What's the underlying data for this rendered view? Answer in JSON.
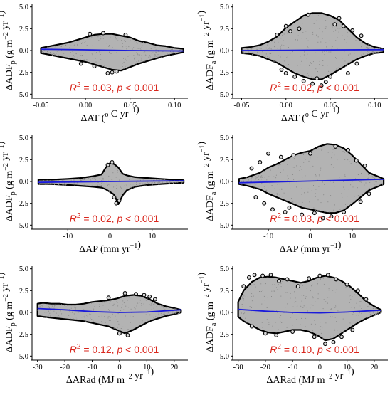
{
  "figure": {
    "colors": {
      "cloud_fill": "#b3b3b3",
      "cloud_outline": "#000000",
      "fit_line": "#1a1adb",
      "annotation": "#d9261c"
    }
  },
  "chart_data": [
    {
      "id": "p1",
      "type": "scatter",
      "xlabel": "ΔAT (o C yr−1)",
      "ylabel": "ΔADFp (g m−2 yr−1)",
      "xlim": [
        -0.06,
        0.115
      ],
      "ylim": [
        -5.3,
        5.3
      ],
      "xticks": [
        -0.05,
        0.0,
        0.05,
        0.1
      ],
      "xtick_labels": [
        "-0.05",
        "0.00",
        "0.05",
        "0.10"
      ],
      "yticks": [
        -5.0,
        -2.5,
        0.0,
        2.5,
        5.0
      ],
      "ytick_labels": [
        "-5.0",
        "-2.5",
        "0.0",
        "2.5",
        "5.0"
      ],
      "annotation": "R2 = 0.03, p < 0.001",
      "envelope": {
        "x": [
          -0.05,
          -0.04,
          -0.03,
          -0.02,
          -0.01,
          0.0,
          0.01,
          0.02,
          0.03,
          0.04,
          0.05,
          0.06,
          0.07,
          0.08,
          0.09,
          0.1,
          0.11
        ],
        "upper": [
          0.3,
          0.5,
          0.7,
          0.9,
          1.2,
          1.5,
          1.8,
          1.9,
          1.9,
          1.7,
          1.5,
          1.1,
          0.9,
          0.6,
          0.5,
          0.3,
          0.2
        ],
        "lower": [
          -0.3,
          -0.5,
          -0.7,
          -0.9,
          -1.1,
          -1.3,
          -1.6,
          -1.9,
          -2.2,
          -2.3,
          -1.9,
          -1.5,
          -1.2,
          -0.9,
          -0.6,
          -0.4,
          -0.2
        ]
      },
      "points": [
        [
          0.02,
          2.0
        ],
        [
          0.025,
          -2.6
        ],
        [
          0.03,
          -2.5
        ],
        [
          0.035,
          -2.4
        ],
        [
          0.005,
          1.9
        ],
        [
          -0.005,
          -1.5
        ],
        [
          0.045,
          1.8
        ],
        [
          0.01,
          -1.8
        ]
      ],
      "fit": {
        "x": [
          -0.05,
          0.0,
          0.05,
          0.11
        ],
        "y": [
          0.15,
          0.08,
          0.0,
          -0.05
        ]
      }
    },
    {
      "id": "p2",
      "type": "scatter",
      "xlabel": "ΔAT (o C yr−1)",
      "ylabel": "ΔADFa (g m−2 yr−1)",
      "xlim": [
        -0.06,
        0.115
      ],
      "ylim": [
        -5.3,
        5.3
      ],
      "xticks": [
        -0.05,
        0.0,
        0.05,
        0.1
      ],
      "xtick_labels": [
        "-0.05",
        "0.00",
        "0.05",
        "0.10"
      ],
      "yticks": [
        -5.0,
        -2.5,
        0.0,
        2.5,
        5.0
      ],
      "ytick_labels": [
        "-5.0",
        "-2.5",
        "0.0",
        "2.5",
        "5.0"
      ],
      "annotation": "R2 = 0.02, p < 0.001",
      "envelope": {
        "x": [
          -0.05,
          -0.04,
          -0.03,
          -0.02,
          -0.01,
          0.0,
          0.01,
          0.02,
          0.03,
          0.04,
          0.05,
          0.06,
          0.07,
          0.08,
          0.09,
          0.1,
          0.11
        ],
        "upper": [
          0.3,
          0.4,
          0.6,
          1.0,
          1.6,
          2.6,
          3.3,
          4.0,
          4.3,
          4.3,
          4.0,
          3.5,
          2.5,
          1.5,
          0.8,
          0.4,
          0.2
        ],
        "lower": [
          -0.3,
          -0.4,
          -0.6,
          -1.0,
          -1.4,
          -2.0,
          -2.6,
          -3.0,
          -3.3,
          -3.3,
          -2.8,
          -2.2,
          -1.6,
          -1.0,
          -0.6,
          -0.3,
          -0.2
        ]
      },
      "points": [
        [
          0.0,
          2.8
        ],
        [
          0.005,
          2.2
        ],
        [
          -0.01,
          1.8
        ],
        [
          0.015,
          2.5
        ],
        [
          0.02,
          -3.5
        ],
        [
          0.03,
          -3.8
        ],
        [
          0.04,
          -4.0
        ],
        [
          0.045,
          -3.6
        ],
        [
          0.05,
          -3.0
        ],
        [
          0.06,
          3.7
        ],
        [
          0.065,
          2.8
        ],
        [
          0.07,
          -2.6
        ],
        [
          0.075,
          2.3
        ],
        [
          0.08,
          -1.5
        ],
        [
          0.085,
          1.7
        ],
        [
          0.01,
          -3.0
        ],
        [
          -0.005,
          -2.2
        ],
        [
          0.055,
          3.0
        ],
        [
          0.025,
          4.1
        ],
        [
          0.035,
          -3.2
        ],
        [
          0.0,
          -2.6
        ]
      ],
      "fit": {
        "x": [
          -0.05,
          0.0,
          0.05,
          0.11
        ],
        "y": [
          0.0,
          0.03,
          0.07,
          0.1
        ]
      }
    },
    {
      "id": "p3",
      "type": "scatter",
      "xlabel": "ΔAP (mm yr−1)",
      "ylabel": "ΔADFp (g m−2 yr−1)",
      "xlim": [
        -18.5,
        18.5
      ],
      "ylim": [
        -5.3,
        5.3
      ],
      "xticks": [
        -10,
        0,
        10
      ],
      "xtick_labels": [
        "-10",
        "0",
        "10"
      ],
      "yticks": [
        -5.0,
        -2.5,
        0.0,
        2.5,
        5.0
      ],
      "ytick_labels": [
        "-5.0",
        "-2.5",
        "0.0",
        "2.5",
        "5.0"
      ],
      "annotation": "R2 = 0.02, p < 0.001",
      "envelope": {
        "x": [
          -17,
          -14,
          -10,
          -7,
          -4,
          -2,
          -1,
          0,
          1,
          2,
          3,
          4,
          6,
          9,
          12,
          15,
          17.5
        ],
        "upper": [
          0.2,
          0.2,
          0.3,
          0.4,
          0.6,
          0.8,
          1.6,
          2.1,
          2.0,
          1.6,
          0.9,
          0.7,
          0.5,
          0.4,
          0.3,
          0.2,
          0.15
        ],
        "lower": [
          -0.3,
          -0.3,
          -0.4,
          -0.5,
          -0.6,
          -0.7,
          -0.9,
          -1.2,
          -1.5,
          -2.6,
          -1.6,
          -1.0,
          -0.6,
          -0.4,
          -0.3,
          -0.2,
          -0.15
        ]
      },
      "points": [
        [
          1.5,
          -2.5
        ],
        [
          0.5,
          2.2
        ],
        [
          -0.5,
          1.9
        ],
        [
          1.0,
          -1.8
        ],
        [
          2.2,
          -2.2
        ]
      ],
      "fit": {
        "x": [
          -17,
          0,
          17.5
        ],
        "y": [
          -0.1,
          0.0,
          0.08
        ]
      }
    },
    {
      "id": "p4",
      "type": "scatter",
      "xlabel": "ΔAP (mm yr−1)",
      "ylabel": "ΔADFa (g m−2 yr−1)",
      "xlim": [
        -18.5,
        18.5
      ],
      "ylim": [
        -5.3,
        5.3
      ],
      "xticks": [
        -10,
        0,
        10
      ],
      "xtick_labels": [
        "-10",
        "0",
        "10"
      ],
      "yticks": [
        -5.0,
        -2.5,
        0.0,
        2.5,
        5.0
      ],
      "ytick_labels": [
        "-5.0",
        "-2.5",
        "0.0",
        "2.5",
        "5.0"
      ],
      "annotation": "R2 = 0.03, p < 0.001",
      "envelope": {
        "x": [
          -17,
          -15,
          -12,
          -10,
          -8,
          -6,
          -4,
          -2,
          0,
          2,
          4,
          6,
          8,
          10,
          12,
          14,
          17.5
        ],
        "upper": [
          0.3,
          0.5,
          1.0,
          1.6,
          2.0,
          2.5,
          3.0,
          3.3,
          3.5,
          4.0,
          4.3,
          4.2,
          3.8,
          3.0,
          2.0,
          1.0,
          0.3
        ],
        "lower": [
          -0.3,
          -0.5,
          -0.9,
          -1.4,
          -1.8,
          -2.2,
          -2.6,
          -3.0,
          -3.2,
          -3.4,
          -3.6,
          -3.6,
          -3.3,
          -2.6,
          -1.8,
          -1.0,
          -0.3
        ]
      },
      "points": [
        [
          -12,
          2.2
        ],
        [
          -10,
          3.2
        ],
        [
          -11,
          -2.5
        ],
        [
          -9,
          -3.2
        ],
        [
          -7,
          2.8
        ],
        [
          -6,
          -3.5
        ],
        [
          -5,
          -3.0
        ],
        [
          -4,
          3.0
        ],
        [
          -2,
          -3.8
        ],
        [
          0,
          3.2
        ],
        [
          1,
          -3.6
        ],
        [
          3,
          -4.2
        ],
        [
          5,
          -4.0
        ],
        [
          6,
          4.0
        ],
        [
          8,
          -3.5
        ],
        [
          9,
          3.6
        ],
        [
          11,
          2.4
        ],
        [
          12,
          -2.3
        ],
        [
          13,
          1.8
        ],
        [
          14,
          -1.4
        ],
        [
          -13,
          -1.8
        ],
        [
          -14,
          1.5
        ]
      ],
      "fit": {
        "x": [
          -17,
          0,
          17.5
        ],
        "y": [
          -0.15,
          0.05,
          0.25
        ]
      }
    },
    {
      "id": "p5",
      "type": "scatter",
      "xlabel": "ΔARad (MJ m−2 yr−1)",
      "ylabel": "ΔADFp (g m−2 yr−1)",
      "xlim": [
        -32,
        25
      ],
      "ylim": [
        -5.3,
        5.3
      ],
      "xticks": [
        -30,
        -20,
        -10,
        0,
        10,
        20
      ],
      "xtick_labels": [
        "-30",
        "-20",
        "-10",
        "0",
        "10",
        "20"
      ],
      "yticks": [
        -5.0,
        -2.5,
        0.0,
        2.5,
        5.0
      ],
      "ytick_labels": [
        "-5.0",
        "-2.5",
        "0.0",
        "2.5",
        "5.0"
      ],
      "annotation": "R2 = 0.12, p < 0.001",
      "envelope": {
        "x": [
          -30,
          -28,
          -25,
          -22,
          -19,
          -16,
          -13,
          -10,
          -7,
          -4,
          -1,
          2,
          5,
          8,
          11,
          14,
          17,
          20,
          22.5
        ],
        "upper": [
          1.0,
          1.1,
          1.0,
          1.0,
          0.9,
          0.9,
          1.0,
          1.2,
          1.3,
          1.4,
          1.6,
          1.9,
          2.0,
          1.9,
          1.5,
          1.0,
          0.7,
          0.5,
          0.3
        ],
        "lower": [
          -0.4,
          -0.5,
          -0.6,
          -0.7,
          -0.8,
          -0.9,
          -1.0,
          -1.2,
          -1.4,
          -1.6,
          -2.0,
          -2.4,
          -2.0,
          -1.5,
          -1.0,
          -0.7,
          -0.4,
          -0.2,
          0.0
        ]
      },
      "points": [
        [
          2,
          2.2
        ],
        [
          6,
          2.1
        ],
        [
          9,
          2.0
        ],
        [
          11,
          1.8
        ],
        [
          0,
          -2.4
        ],
        [
          3,
          -2.6
        ],
        [
          -4,
          1.7
        ],
        [
          13,
          1.5
        ]
      ],
      "fit": {
        "x": [
          -30,
          -20,
          -10,
          0,
          10,
          22.5
        ],
        "y": [
          0.45,
          0.3,
          0.1,
          0.0,
          0.05,
          0.3
        ]
      }
    },
    {
      "id": "p6",
      "type": "scatter",
      "xlabel": "ΔARad (MJ m−2 yr−1)",
      "ylabel": "ΔADFa (g m−2 yr−1)",
      "xlim": [
        -32,
        25
      ],
      "ylim": [
        -5.3,
        5.3
      ],
      "xticks": [
        -30,
        -20,
        -10,
        0,
        10,
        20
      ],
      "xtick_labels": [
        "-30",
        "-20",
        "-10",
        "0",
        "10",
        "20"
      ],
      "yticks": [
        -5.0,
        -2.5,
        0.0,
        2.5,
        5.0
      ],
      "ytick_labels": [
        "-5.0",
        "-2.5",
        "0.0",
        "2.5",
        "5.0"
      ],
      "annotation": "R2 = 0.10, p < 0.001",
      "envelope": {
        "x": [
          -30,
          -28,
          -25,
          -22,
          -19,
          -16,
          -13,
          -10,
          -7,
          -4,
          -1,
          2,
          5,
          8,
          11,
          14,
          17,
          20,
          22.5
        ],
        "upper": [
          1.2,
          2.5,
          3.5,
          4.0,
          4.1,
          4.0,
          3.8,
          3.6,
          3.4,
          3.6,
          4.0,
          4.2,
          4.0,
          3.6,
          3.0,
          2.2,
          1.3,
          0.7,
          0.3
        ],
        "lower": [
          -0.5,
          -1.0,
          -1.5,
          -2.0,
          -2.3,
          -2.4,
          -2.2,
          -2.0,
          -2.0,
          -2.2,
          -2.6,
          -3.2,
          -3.0,
          -2.4,
          -1.8,
          -1.2,
          -0.7,
          -0.3,
          0.0
        ]
      },
      "points": [
        [
          -28,
          3.0
        ],
        [
          -26,
          4.0
        ],
        [
          -24,
          4.3
        ],
        [
          -21,
          4.2
        ],
        [
          -18,
          4.3
        ],
        [
          -15,
          3.6
        ],
        [
          -12,
          3.8
        ],
        [
          -8,
          3.0
        ],
        [
          -4,
          3.9
        ],
        [
          0,
          4.2
        ],
        [
          3,
          4.3
        ],
        [
          6,
          3.8
        ],
        [
          10,
          3.2
        ],
        [
          14,
          2.5
        ],
        [
          -20,
          -2.4
        ],
        [
          -16,
          -2.6
        ],
        [
          -10,
          -2.2
        ],
        [
          -2,
          -2.8
        ],
        [
          2,
          -3.6
        ],
        [
          5,
          -3.4
        ],
        [
          8,
          -2.8
        ],
        [
          12,
          -2.0
        ],
        [
          -25,
          -1.6
        ],
        [
          17,
          1.5
        ]
      ],
      "fit": {
        "x": [
          -30,
          -20,
          -10,
          0,
          10,
          22.5
        ],
        "y": [
          0.35,
          0.15,
          0.0,
          -0.05,
          0.05,
          0.25
        ]
      }
    }
  ]
}
